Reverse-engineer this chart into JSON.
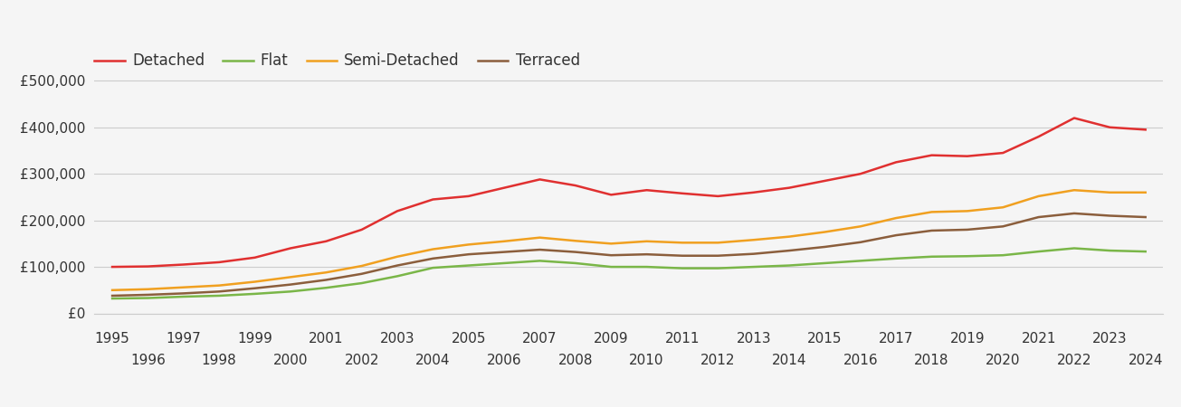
{
  "years": [
    1995,
    1996,
    1997,
    1998,
    1999,
    2000,
    2001,
    2002,
    2003,
    2004,
    2005,
    2006,
    2007,
    2008,
    2009,
    2010,
    2011,
    2012,
    2013,
    2014,
    2015,
    2016,
    2017,
    2018,
    2019,
    2020,
    2021,
    2022,
    2023,
    2024
  ],
  "detached": [
    100000,
    101000,
    105000,
    110000,
    120000,
    140000,
    155000,
    180000,
    220000,
    245000,
    252000,
    270000,
    288000,
    275000,
    255000,
    265000,
    258000,
    252000,
    260000,
    270000,
    285000,
    300000,
    325000,
    340000,
    338000,
    345000,
    380000,
    420000,
    400000,
    395000
  ],
  "flat": [
    32000,
    33000,
    36000,
    38000,
    42000,
    47000,
    55000,
    65000,
    80000,
    98000,
    103000,
    108000,
    113000,
    108000,
    100000,
    100000,
    97000,
    97000,
    100000,
    103000,
    108000,
    113000,
    118000,
    122000,
    123000,
    125000,
    133000,
    140000,
    135000,
    133000
  ],
  "semi_detached": [
    50000,
    52000,
    56000,
    60000,
    68000,
    78000,
    88000,
    102000,
    122000,
    138000,
    148000,
    155000,
    163000,
    156000,
    150000,
    155000,
    152000,
    152000,
    158000,
    165000,
    175000,
    187000,
    205000,
    218000,
    220000,
    228000,
    252000,
    265000,
    260000,
    260000
  ],
  "terraced": [
    38000,
    40000,
    43000,
    47000,
    54000,
    62000,
    72000,
    85000,
    103000,
    118000,
    127000,
    132000,
    137000,
    132000,
    125000,
    127000,
    124000,
    124000,
    128000,
    135000,
    143000,
    153000,
    168000,
    178000,
    180000,
    187000,
    207000,
    215000,
    210000,
    207000
  ],
  "detached_color": "#e03030",
  "flat_color": "#7ab648",
  "semi_detached_color": "#f0a020",
  "terraced_color": "#8b5e3c",
  "background_color": "#f5f5f5",
  "grid_color": "#cccccc",
  "line_width": 1.8,
  "legend_labels": [
    "Detached",
    "Flat",
    "Semi-Detached",
    "Terraced"
  ],
  "ylim": [
    0,
    560000
  ],
  "yticks": [
    0,
    100000,
    200000,
    300000,
    400000,
    500000
  ],
  "ytick_labels": [
    "£0",
    "£100,000",
    "£200,000",
    "£300,000",
    "£400,000",
    "£500,000"
  ],
  "font_color": "#333333",
  "tick_fontsize": 11,
  "legend_fontsize": 12
}
